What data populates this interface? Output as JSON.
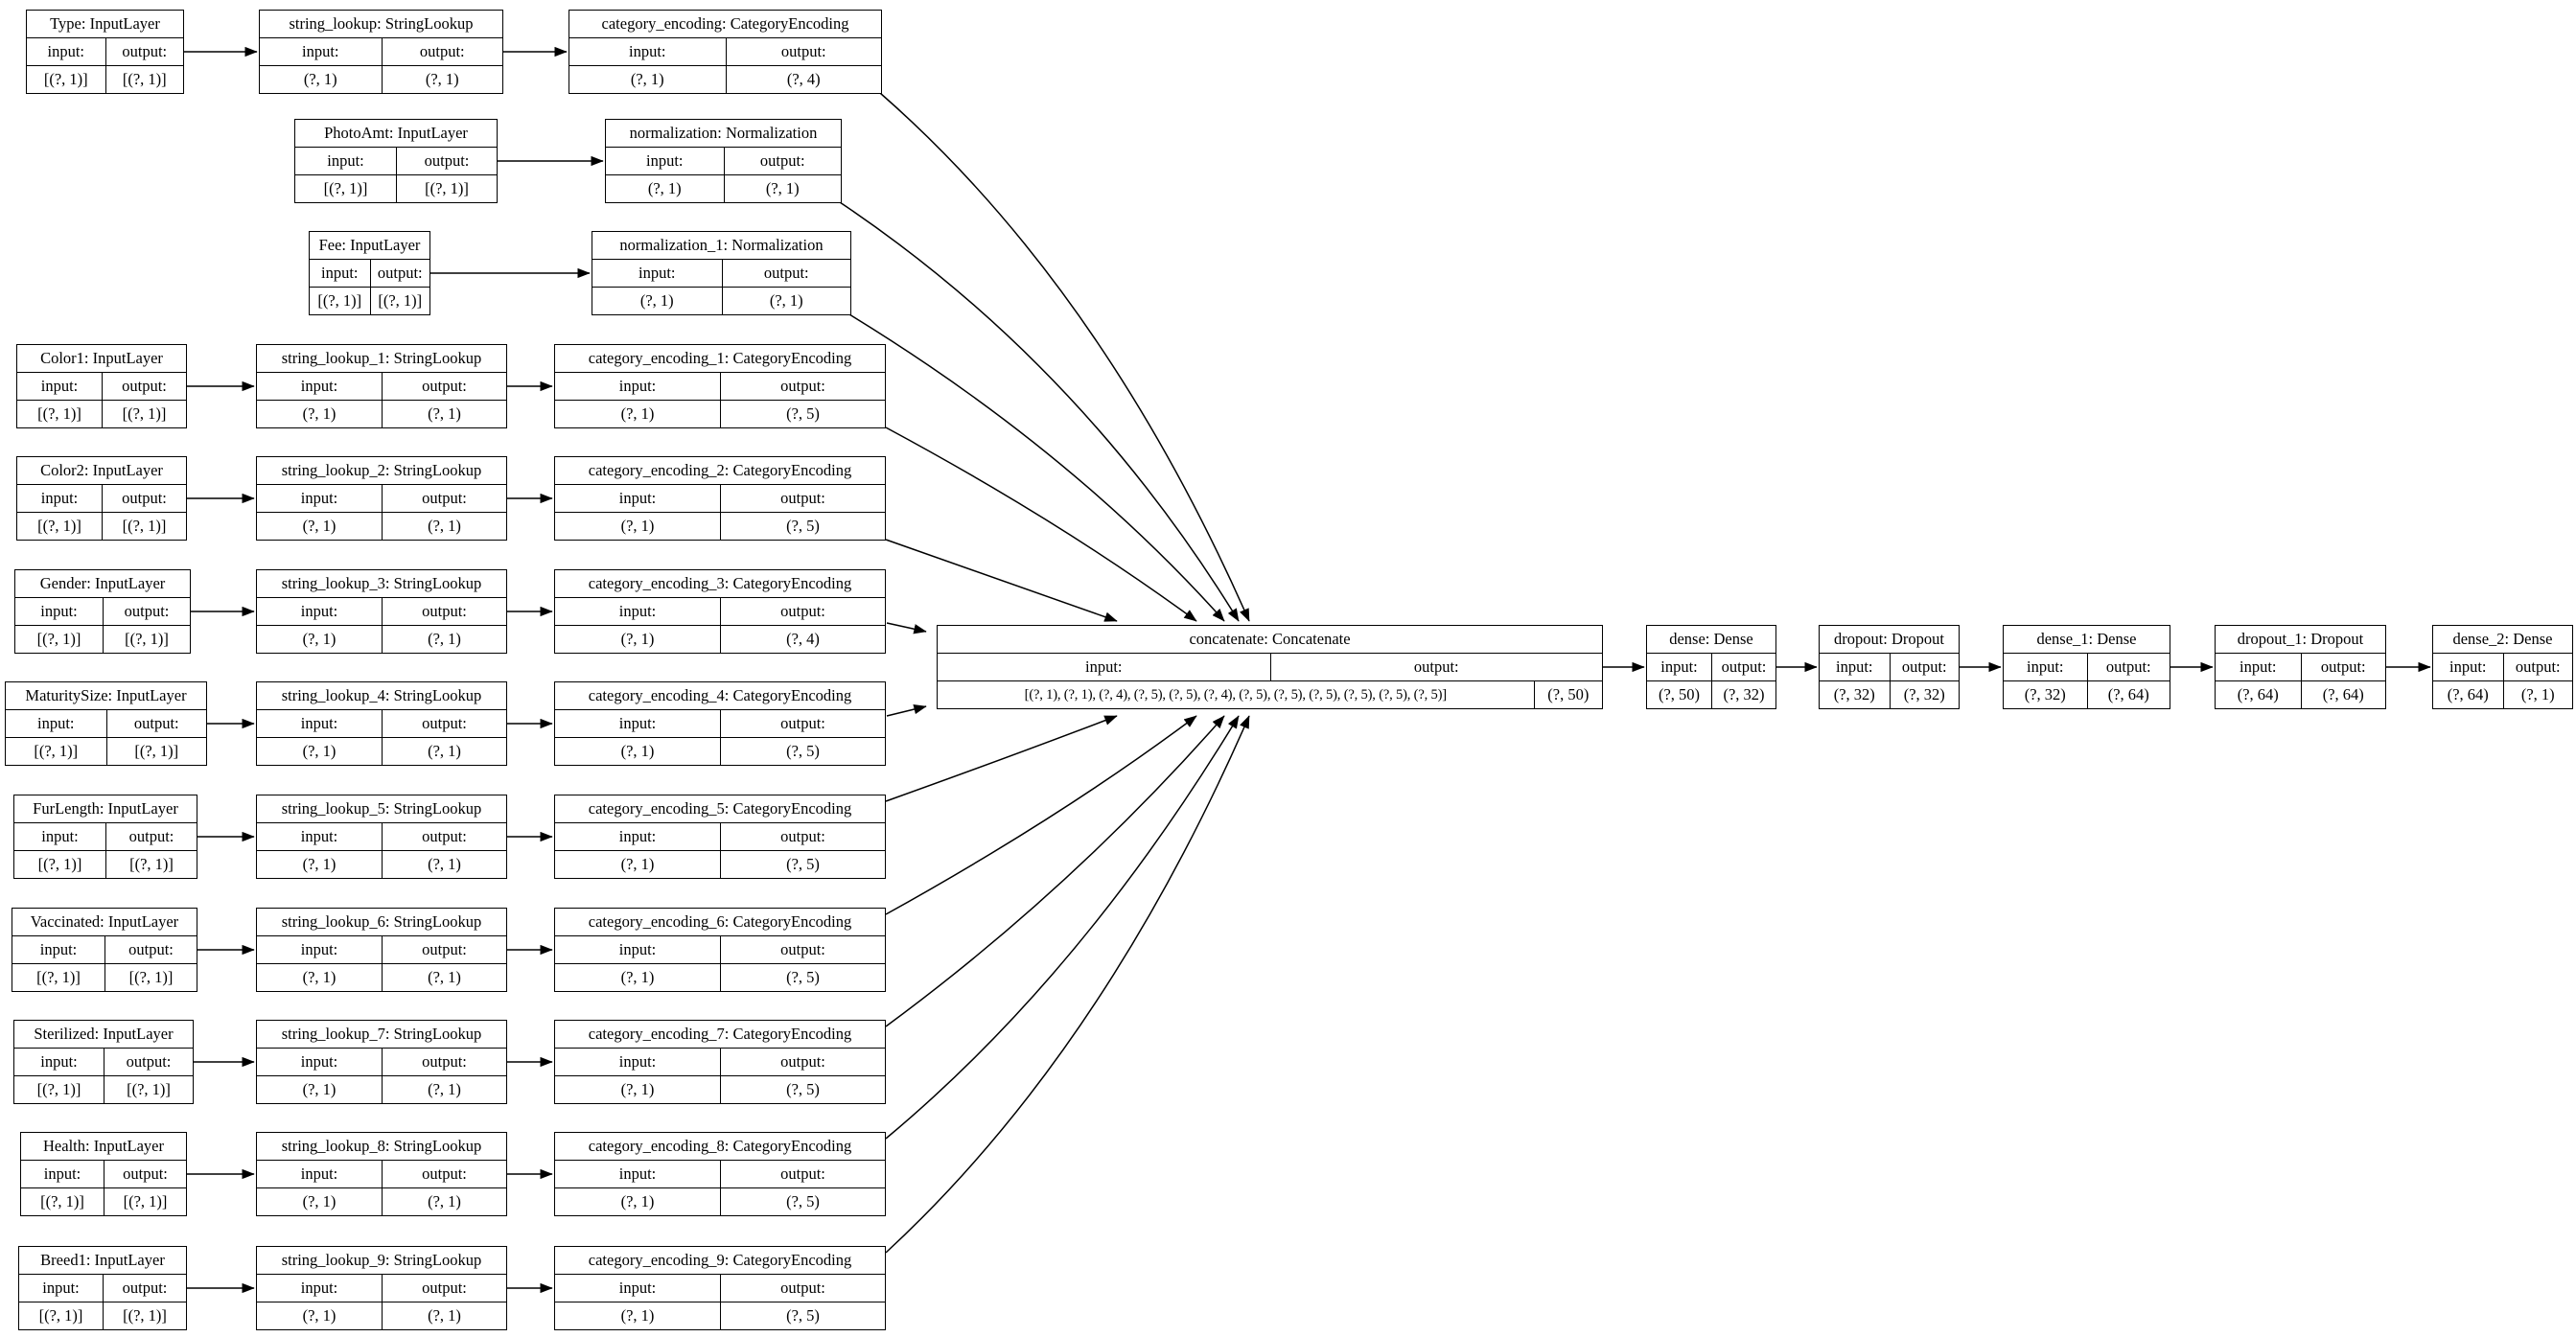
{
  "diagram": {
    "port_labels": {
      "input": "input:",
      "output": "output:"
    },
    "nodes": [
      {
        "id": "Type",
        "title": "Type: InputLayer",
        "input_shape": "[(?, 1)]",
        "output_shape": "[(?, 1)]"
      },
      {
        "id": "string_lookup",
        "title": "string_lookup: StringLookup",
        "input_shape": "(?, 1)",
        "output_shape": "(?, 1)"
      },
      {
        "id": "category_encoding",
        "title": "category_encoding: CategoryEncoding",
        "input_shape": "(?, 1)",
        "output_shape": "(?, 4)"
      },
      {
        "id": "PhotoAmt",
        "title": "PhotoAmt: InputLayer",
        "input_shape": "[(?, 1)]",
        "output_shape": "[(?, 1)]"
      },
      {
        "id": "normalization",
        "title": "normalization: Normalization",
        "input_shape": "(?, 1)",
        "output_shape": "(?, 1)"
      },
      {
        "id": "Fee",
        "title": "Fee: InputLayer",
        "input_shape": "[(?, 1)]",
        "output_shape": "[(?, 1)]"
      },
      {
        "id": "normalization_1",
        "title": "normalization_1: Normalization",
        "input_shape": "(?, 1)",
        "output_shape": "(?, 1)"
      },
      {
        "id": "Color1",
        "title": "Color1: InputLayer",
        "input_shape": "[(?, 1)]",
        "output_shape": "[(?, 1)]"
      },
      {
        "id": "string_lookup_1",
        "title": "string_lookup_1: StringLookup",
        "input_shape": "(?, 1)",
        "output_shape": "(?, 1)"
      },
      {
        "id": "category_encoding_1",
        "title": "category_encoding_1: CategoryEncoding",
        "input_shape": "(?, 1)",
        "output_shape": "(?, 5)"
      },
      {
        "id": "Color2",
        "title": "Color2: InputLayer",
        "input_shape": "[(?, 1)]",
        "output_shape": "[(?, 1)]"
      },
      {
        "id": "string_lookup_2",
        "title": "string_lookup_2: StringLookup",
        "input_shape": "(?, 1)",
        "output_shape": "(?, 1)"
      },
      {
        "id": "category_encoding_2",
        "title": "category_encoding_2: CategoryEncoding",
        "input_shape": "(?, 1)",
        "output_shape": "(?, 5)"
      },
      {
        "id": "Gender",
        "title": "Gender: InputLayer",
        "input_shape": "[(?, 1)]",
        "output_shape": "[(?, 1)]"
      },
      {
        "id": "string_lookup_3",
        "title": "string_lookup_3: StringLookup",
        "input_shape": "(?, 1)",
        "output_shape": "(?, 1)"
      },
      {
        "id": "category_encoding_3",
        "title": "category_encoding_3: CategoryEncoding",
        "input_shape": "(?, 1)",
        "output_shape": "(?, 4)"
      },
      {
        "id": "MaturitySize",
        "title": "MaturitySize: InputLayer",
        "input_shape": "[(?, 1)]",
        "output_shape": "[(?, 1)]"
      },
      {
        "id": "string_lookup_4",
        "title": "string_lookup_4: StringLookup",
        "input_shape": "(?, 1)",
        "output_shape": "(?, 1)"
      },
      {
        "id": "category_encoding_4",
        "title": "category_encoding_4: CategoryEncoding",
        "input_shape": "(?, 1)",
        "output_shape": "(?, 5)"
      },
      {
        "id": "FurLength",
        "title": "FurLength: InputLayer",
        "input_shape": "[(?, 1)]",
        "output_shape": "[(?, 1)]"
      },
      {
        "id": "string_lookup_5",
        "title": "string_lookup_5: StringLookup",
        "input_shape": "(?, 1)",
        "output_shape": "(?, 1)"
      },
      {
        "id": "category_encoding_5",
        "title": "category_encoding_5: CategoryEncoding",
        "input_shape": "(?, 1)",
        "output_shape": "(?, 5)"
      },
      {
        "id": "Vaccinated",
        "title": "Vaccinated: InputLayer",
        "input_shape": "[(?, 1)]",
        "output_shape": "[(?, 1)]"
      },
      {
        "id": "string_lookup_6",
        "title": "string_lookup_6: StringLookup",
        "input_shape": "(?, 1)",
        "output_shape": "(?, 1)"
      },
      {
        "id": "category_encoding_6",
        "title": "category_encoding_6: CategoryEncoding",
        "input_shape": "(?, 1)",
        "output_shape": "(?, 5)"
      },
      {
        "id": "Sterilized",
        "title": "Sterilized: InputLayer",
        "input_shape": "[(?, 1)]",
        "output_shape": "[(?, 1)]"
      },
      {
        "id": "string_lookup_7",
        "title": "string_lookup_7: StringLookup",
        "input_shape": "(?, 1)",
        "output_shape": "(?, 1)"
      },
      {
        "id": "category_encoding_7",
        "title": "category_encoding_7: CategoryEncoding",
        "input_shape": "(?, 1)",
        "output_shape": "(?, 5)"
      },
      {
        "id": "Health",
        "title": "Health: InputLayer",
        "input_shape": "[(?, 1)]",
        "output_shape": "[(?, 1)]"
      },
      {
        "id": "string_lookup_8",
        "title": "string_lookup_8: StringLookup",
        "input_shape": "(?, 1)",
        "output_shape": "(?, 1)"
      },
      {
        "id": "category_encoding_8",
        "title": "category_encoding_8: CategoryEncoding",
        "input_shape": "(?, 1)",
        "output_shape": "(?, 5)"
      },
      {
        "id": "Breed1",
        "title": "Breed1: InputLayer",
        "input_shape": "[(?, 1)]",
        "output_shape": "[(?, 1)]"
      },
      {
        "id": "string_lookup_9",
        "title": "string_lookup_9: StringLookup",
        "input_shape": "(?, 1)",
        "output_shape": "(?, 1)"
      },
      {
        "id": "category_encoding_9",
        "title": "category_encoding_9: CategoryEncoding",
        "input_shape": "(?, 1)",
        "output_shape": "(?, 5)"
      },
      {
        "id": "concatenate",
        "title": "concatenate: Concatenate",
        "input_shape": "[(?, 1), (?, 1), (?, 4), (?, 5), (?, 5), (?, 4), (?, 5), (?, 5), (?, 5), (?, 5), (?, 5), (?, 5)]",
        "output_shape": "(?, 50)"
      },
      {
        "id": "dense",
        "title": "dense: Dense",
        "input_shape": "(?, 50)",
        "output_shape": "(?, 32)"
      },
      {
        "id": "dropout",
        "title": "dropout: Dropout",
        "input_shape": "(?, 32)",
        "output_shape": "(?, 32)"
      },
      {
        "id": "dense_1",
        "title": "dense_1: Dense",
        "input_shape": "(?, 32)",
        "output_shape": "(?, 64)"
      },
      {
        "id": "dropout_1",
        "title": "dropout_1: Dropout",
        "input_shape": "(?, 64)",
        "output_shape": "(?, 64)"
      },
      {
        "id": "dense_2",
        "title": "dense_2: Dense",
        "input_shape": "(?, 64)",
        "output_shape": "(?, 1)"
      }
    ],
    "edges": [
      [
        "Type",
        "string_lookup"
      ],
      [
        "string_lookup",
        "category_encoding"
      ],
      [
        "PhotoAmt",
        "normalization"
      ],
      [
        "Fee",
        "normalization_1"
      ],
      [
        "Color1",
        "string_lookup_1"
      ],
      [
        "string_lookup_1",
        "category_encoding_1"
      ],
      [
        "Color2",
        "string_lookup_2"
      ],
      [
        "string_lookup_2",
        "category_encoding_2"
      ],
      [
        "Gender",
        "string_lookup_3"
      ],
      [
        "string_lookup_3",
        "category_encoding_3"
      ],
      [
        "MaturitySize",
        "string_lookup_4"
      ],
      [
        "string_lookup_4",
        "category_encoding_4"
      ],
      [
        "FurLength",
        "string_lookup_5"
      ],
      [
        "string_lookup_5",
        "category_encoding_5"
      ],
      [
        "Vaccinated",
        "string_lookup_6"
      ],
      [
        "string_lookup_6",
        "category_encoding_6"
      ],
      [
        "Sterilized",
        "string_lookup_7"
      ],
      [
        "string_lookup_7",
        "category_encoding_7"
      ],
      [
        "Health",
        "string_lookup_8"
      ],
      [
        "string_lookup_8",
        "category_encoding_8"
      ],
      [
        "Breed1",
        "string_lookup_9"
      ],
      [
        "string_lookup_9",
        "category_encoding_9"
      ],
      [
        "category_encoding",
        "concatenate"
      ],
      [
        "normalization",
        "concatenate"
      ],
      [
        "normalization_1",
        "concatenate"
      ],
      [
        "category_encoding_1",
        "concatenate"
      ],
      [
        "category_encoding_2",
        "concatenate"
      ],
      [
        "category_encoding_3",
        "concatenate"
      ],
      [
        "category_encoding_4",
        "concatenate"
      ],
      [
        "category_encoding_5",
        "concatenate"
      ],
      [
        "category_encoding_6",
        "concatenate"
      ],
      [
        "category_encoding_7",
        "concatenate"
      ],
      [
        "category_encoding_8",
        "concatenate"
      ],
      [
        "category_encoding_9",
        "concatenate"
      ],
      [
        "concatenate",
        "dense"
      ],
      [
        "dense",
        "dropout"
      ],
      [
        "dropout",
        "dense_1"
      ],
      [
        "dense_1",
        "dropout_1"
      ],
      [
        "dropout_1",
        "dense_2"
      ]
    ]
  },
  "colors": {
    "background": "#ffffff",
    "node_border": "#000000",
    "edge": "#000000",
    "text": "#000000"
  }
}
